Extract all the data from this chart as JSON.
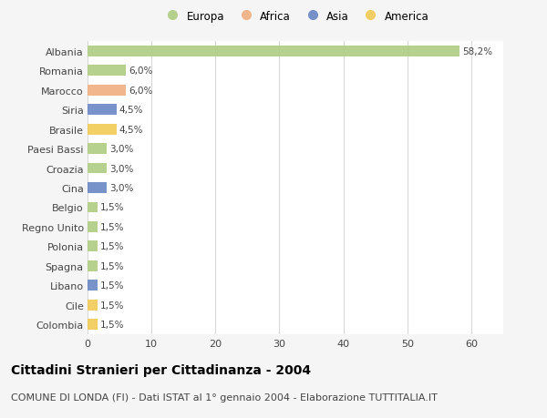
{
  "countries": [
    "Albania",
    "Romania",
    "Marocco",
    "Siria",
    "Brasile",
    "Paesi Bassi",
    "Croazia",
    "Cina",
    "Belgio",
    "Regno Unito",
    "Polonia",
    "Spagna",
    "Libano",
    "Cile",
    "Colombia"
  ],
  "values": [
    58.2,
    6.0,
    6.0,
    4.5,
    4.5,
    3.0,
    3.0,
    3.0,
    1.5,
    1.5,
    1.5,
    1.5,
    1.5,
    1.5,
    1.5
  ],
  "labels": [
    "58,2%",
    "6,0%",
    "6,0%",
    "4,5%",
    "4,5%",
    "3,0%",
    "3,0%",
    "3,0%",
    "1,5%",
    "1,5%",
    "1,5%",
    "1,5%",
    "1,5%",
    "1,5%",
    "1,5%"
  ],
  "regions": [
    "Europa",
    "Europa",
    "Africa",
    "Asia",
    "America",
    "Europa",
    "Europa",
    "Asia",
    "Europa",
    "Europa",
    "Europa",
    "Europa",
    "Asia",
    "America",
    "America"
  ],
  "colors": {
    "Europa": "#aac97a",
    "Africa": "#f0aa78",
    "Asia": "#6080c0",
    "America": "#f0c84a"
  },
  "legend_order": [
    "Europa",
    "Africa",
    "Asia",
    "America"
  ],
  "xlim": [
    0,
    65
  ],
  "xticks": [
    0,
    10,
    20,
    30,
    40,
    50,
    60
  ],
  "title": "Cittadini Stranieri per Cittadinanza - 2004",
  "subtitle": "COMUNE DI LONDA (FI) - Dati ISTAT al 1° gennaio 2004 - Elaborazione TUTTITALIA.IT",
  "bg_color": "#f5f5f5",
  "plot_bg_color": "#ffffff",
  "grid_color": "#d8d8d8",
  "title_fontsize": 10,
  "subtitle_fontsize": 8,
  "label_fontsize": 7.5,
  "tick_fontsize": 8,
  "legend_fontsize": 8.5,
  "bar_height": 0.55,
  "bar_alpha": 0.85
}
